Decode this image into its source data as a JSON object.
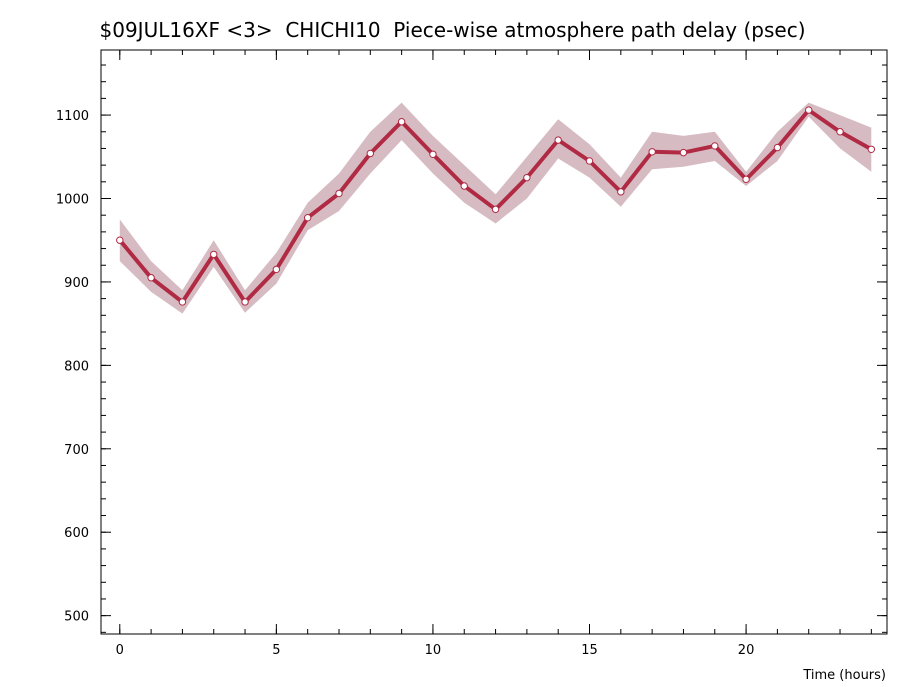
{
  "chart_data": {
    "type": "line",
    "title": "$09JUL16XF <3>  CHICHI10  Piece-wise atmosphere path delay (psec)",
    "xlabel": "Time (hours)",
    "ylabel": "",
    "xlim": [
      -0.6,
      24.5
    ],
    "ylim": [
      478,
      1178
    ],
    "xticks": [
      0,
      5,
      10,
      15,
      20
    ],
    "yticks": [
      500,
      600,
      700,
      800,
      900,
      1000,
      1100
    ],
    "x": [
      0,
      1,
      2,
      3,
      4,
      5,
      6,
      7,
      8,
      9,
      10,
      11,
      12,
      13,
      14,
      15,
      16,
      17,
      18,
      19,
      20,
      21,
      22,
      23,
      24
    ],
    "values": [
      950,
      905,
      876,
      933,
      876,
      915,
      977,
      1006,
      1054,
      1092,
      1053,
      1015,
      987,
      1025,
      1070,
      1045,
      1008,
      1056,
      1055,
      1063,
      1023,
      1061,
      1106,
      1080,
      1059
    ],
    "band_upper": [
      975,
      925,
      890,
      950,
      890,
      935,
      995,
      1030,
      1080,
      1115,
      1075,
      1040,
      1005,
      1050,
      1095,
      1065,
      1025,
      1080,
      1075,
      1080,
      1032,
      1080,
      1115,
      1100,
      1085
    ],
    "band_lower": [
      925,
      888,
      862,
      918,
      863,
      898,
      962,
      985,
      1030,
      1070,
      1030,
      995,
      970,
      1000,
      1048,
      1025,
      990,
      1035,
      1038,
      1045,
      1015,
      1045,
      1098,
      1060,
      1032
    ],
    "colors": {
      "line": "#b02a44",
      "band": "#d6bcc2",
      "marker_fill": "#ffffff"
    },
    "grid": false,
    "legend": "none"
  }
}
